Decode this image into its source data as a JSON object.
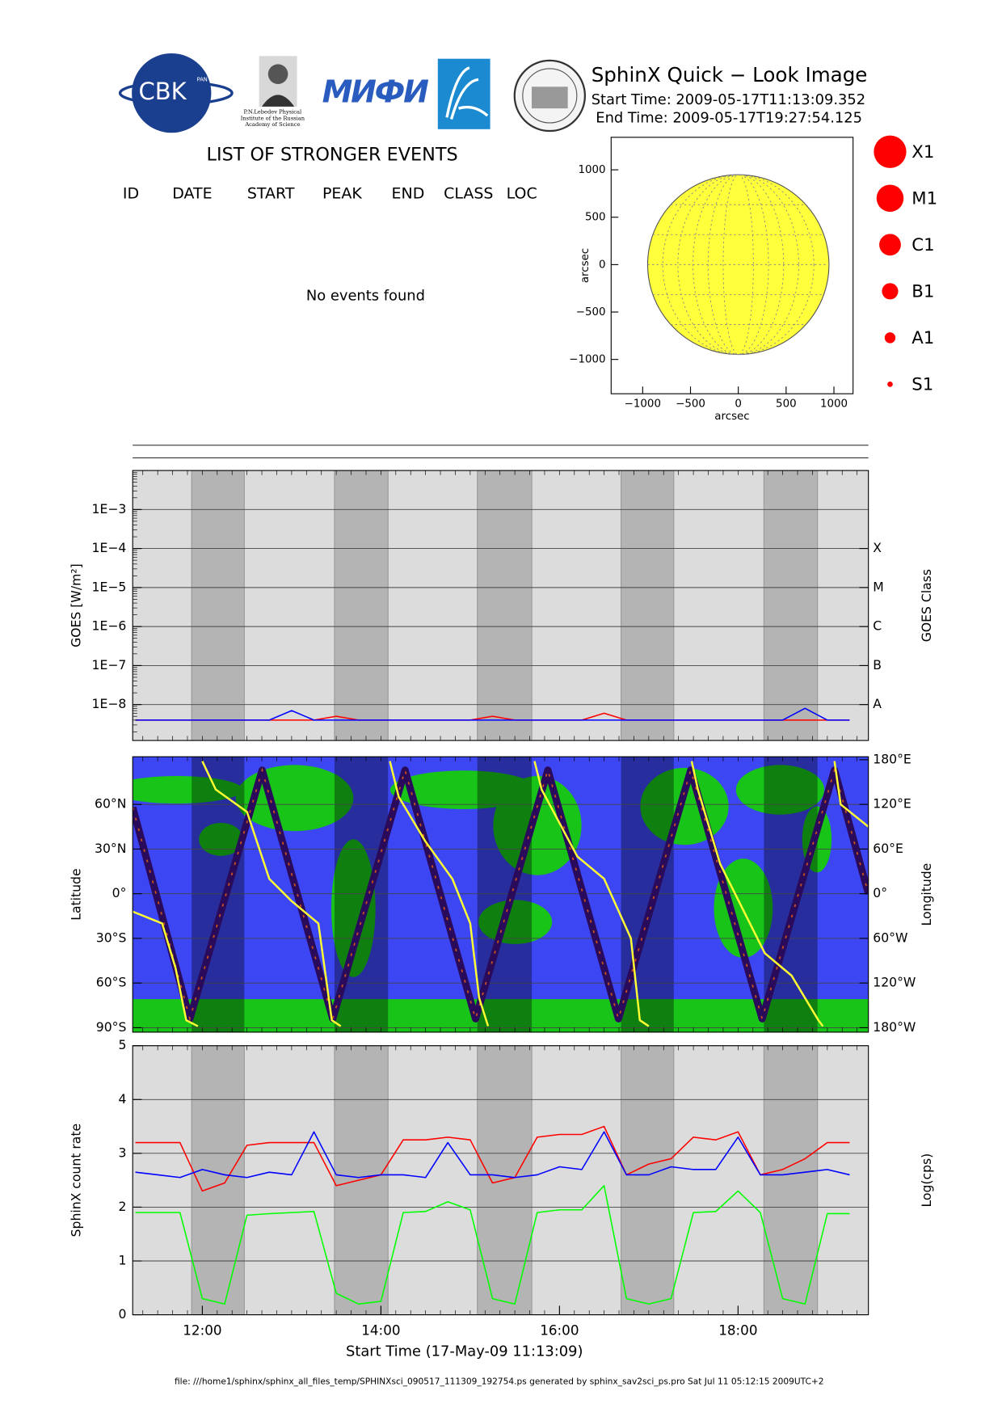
{
  "header": {
    "title": "SphinX Quick − Look Image",
    "start_time": "Start Time: 2009-05-17T11:13:09.352",
    "end_time": "End Time: 2009-05-17T19:27:54.125",
    "logo_cbk": "CBK",
    "logo_pan": "PAN",
    "logo_mifi": "МИФИ",
    "lebedev_caption": [
      "P.N.Lebedev Physical",
      "Institute of the Russian",
      "Academy of Science"
    ]
  },
  "events": {
    "title": "LIST OF STRONGER EVENTS",
    "columns": [
      "ID",
      "DATE",
      "START",
      "PEAK",
      "END",
      "CLASS",
      "LOC"
    ],
    "message": "No events found"
  },
  "flare_legend": {
    "color": "#ff0000",
    "labels": [
      "X1",
      "M1",
      "C1",
      "B1",
      "A1",
      "S1"
    ]
  },
  "shaded_intervals": [
    [
      11.88,
      12.47
    ],
    [
      13.48,
      14.08
    ],
    [
      15.08,
      15.69
    ],
    [
      16.69,
      17.28
    ],
    [
      18.29,
      18.89
    ]
  ],
  "footer": "file: ///home1/sphinx/sphinx_all_files_temp/SPHINXsci_090517_111309_192754.ps generated by sphinx_sav2sci_ps.pro Sat Jul 11 05:12:15 2009UTC+2",
  "chart_data": [
    {
      "type": "disk",
      "xlabel": "arcsec",
      "ylabel": "arcsec",
      "xlim": [
        -1330,
        1200
      ],
      "ylim": [
        -1362,
        1343
      ],
      "xticks": [
        {
          "value": -1000,
          "label": "−1000"
        },
        {
          "value": -500,
          "label": "−500"
        },
        0,
        500,
        1000
      ],
      "yticks": [
        {
          "value": -1000,
          "label": "−1000"
        },
        {
          "value": -500,
          "label": "−500"
        },
        0,
        500,
        1000
      ],
      "disk": {
        "x": 0,
        "y": 0,
        "r": 948,
        "color": "#ffff3c"
      }
    },
    {
      "type": "line",
      "ylabel": "GOES [W/m²]",
      "y2label": "GOES Class",
      "log_y": true,
      "background": "#dcdcdc",
      "shade_color": "#b4b4b4",
      "xlim": [
        11.22,
        19.46
      ],
      "ylim": [
        1.2e-09,
        0.01
      ],
      "yticks": [
        {
          "value": 1e-08,
          "label": "1E−8"
        },
        {
          "value": 1e-07,
          "label": "1E−7"
        },
        {
          "value": 1e-06,
          "label": "1E−6"
        },
        {
          "value": 1e-05,
          "label": "1E−5"
        },
        {
          "value": 0.0001,
          "label": "1E−4"
        },
        {
          "value": 0.001,
          "label": "1E−3"
        }
      ],
      "class_ticks": [
        {
          "value": 1e-08,
          "label": "A"
        },
        {
          "value": 1e-07,
          "label": "B"
        },
        {
          "value": 1e-06,
          "label": "C"
        },
        {
          "value": 1e-05,
          "label": "M"
        },
        {
          "value": 0.0001,
          "label": "X"
        }
      ],
      "grid": true,
      "x": [
        11.25,
        11.5,
        11.75,
        12,
        12.25,
        12.5,
        12.75,
        13,
        13.25,
        13.5,
        13.75,
        14,
        14.25,
        14.5,
        14.75,
        15,
        15.25,
        15.5,
        15.75,
        16,
        16.25,
        16.5,
        16.75,
        17,
        17.25,
        17.5,
        17.75,
        18,
        18.25,
        18.5,
        18.75,
        19,
        19.25
      ],
      "series": [
        {
          "color": "#ff0000",
          "values": [
            4e-09,
            4e-09,
            4e-09,
            4e-09,
            4e-09,
            4e-09,
            4e-09,
            4e-09,
            4e-09,
            5e-09,
            4e-09,
            4e-09,
            4e-09,
            4e-09,
            4e-09,
            4e-09,
            5e-09,
            4e-09,
            4e-09,
            4e-09,
            4e-09,
            6e-09,
            4e-09,
            4e-09,
            4e-09,
            4e-09,
            4e-09,
            4e-09,
            4e-09,
            4e-09,
            4e-09,
            4e-09,
            4e-09
          ]
        },
        {
          "color": "#0000ff",
          "values": [
            4e-09,
            4e-09,
            4e-09,
            4e-09,
            4e-09,
            4e-09,
            4e-09,
            7e-09,
            4e-09,
            4e-09,
            4e-09,
            4e-09,
            4e-09,
            4e-09,
            4e-09,
            4e-09,
            4e-09,
            4e-09,
            4e-09,
            4e-09,
            4e-09,
            4e-09,
            4e-09,
            4e-09,
            4e-09,
            4e-09,
            4e-09,
            4e-09,
            4e-09,
            4e-09,
            8e-09,
            4e-09,
            4e-09
          ]
        }
      ]
    },
    {
      "type": "line",
      "ylabel": "Latitude",
      "y2label": "Longitude",
      "background": "#3c46f2",
      "land_color": "#18c418",
      "shade_color": "#000000",
      "xlim": [
        11.22,
        19.46
      ],
      "ylim": [
        -93,
        92
      ],
      "yticks": [
        {
          "value": -90,
          "label": "90°S"
        },
        {
          "value": -60,
          "label": "60°S"
        },
        {
          "value": -30,
          "label": "30°S"
        },
        {
          "value": 0,
          "label": "0°"
        },
        {
          "value": 30,
          "label": "30°N"
        },
        {
          "value": 60,
          "label": "60°N"
        }
      ],
      "y2lim": [
        -186,
        184
      ],
      "y2ticks": [
        {
          "value": -180,
          "label": "180°W"
        },
        {
          "value": -120,
          "label": "120°W"
        },
        {
          "value": -60,
          "label": "60°W"
        },
        {
          "value": 0,
          "label": "0°"
        },
        {
          "value": 60,
          "label": "60°E"
        },
        {
          "value": 120,
          "label": "120°E"
        },
        {
          "value": 180,
          "label": "180°E"
        }
      ],
      "grid": true,
      "series": [
        {
          "color": "#2a0a5a",
          "x": [
            11.22,
            11.86,
            12.67,
            13.46,
            14.27,
            15.06,
            15.87,
            16.66,
            17.47,
            18.27,
            19.08,
            19.46
          ],
          "values": [
            58,
            -84,
            83,
            -84,
            83,
            -84,
            83,
            -84,
            83,
            -84,
            83,
            0
          ]
        },
        {
          "color": "#ffff33",
          "axis": "y2",
          "x": [
            11.22,
            11.55,
            11.7,
            11.82,
            11.95,
            null,
            12.0,
            12.15,
            12.5,
            12.75,
            13.0,
            13.3,
            13.45,
            13.55,
            null,
            14.1,
            14.2,
            14.5,
            14.8,
            15.0,
            15.1,
            15.2,
            null,
            15.72,
            15.8,
            16.2,
            16.5,
            16.8,
            16.9,
            17.0,
            null,
            17.48,
            17.55,
            17.8,
            18.3,
            18.6,
            18.9,
            18.95,
            null,
            19.08,
            19.15,
            19.46
          ],
          "values": [
            -24,
            -40,
            -100,
            -170,
            -178,
            null,
            178,
            140,
            110,
            20,
            -10,
            -40,
            -170,
            -178,
            null,
            178,
            130,
            70,
            20,
            -40,
            -140,
            -178,
            null,
            178,
            140,
            50,
            20,
            -60,
            -170,
            -178,
            null,
            178,
            140,
            40,
            -80,
            -110,
            -170,
            -178,
            null,
            178,
            120,
            90
          ]
        }
      ]
    },
    {
      "type": "line",
      "ylabel": "SphinX count rate",
      "y2label": "Log(cps)",
      "xlabel": "Start Time (17-May-09 11:13:09)",
      "background": "#dcdcdc",
      "shade_color": "#b4b4b4",
      "xlim": [
        11.22,
        19.46
      ],
      "xticks": [
        {
          "value": 12,
          "label": "12:00"
        },
        {
          "value": 14,
          "label": "14:00"
        },
        {
          "value": 16,
          "label": "16:00"
        },
        {
          "value": 18,
          "label": "18:00"
        }
      ],
      "ylim": [
        0,
        5
      ],
      "yticks": [
        0,
        1,
        2,
        3,
        4,
        5
      ],
      "grid": true,
      "x": [
        11.25,
        11.5,
        11.75,
        12,
        12.25,
        12.5,
        12.75,
        13,
        13.25,
        13.5,
        13.75,
        14,
        14.25,
        14.5,
        14.75,
        15,
        15.25,
        15.5,
        15.75,
        16,
        16.25,
        16.5,
        16.75,
        17,
        17.25,
        17.5,
        17.75,
        18,
        18.25,
        18.5,
        18.75,
        19,
        19.25
      ],
      "series": [
        {
          "color": "#ff0000",
          "values": [
            3.2,
            3.2,
            3.2,
            2.3,
            2.45,
            3.15,
            3.2,
            3.2,
            3.2,
            2.4,
            2.5,
            2.6,
            3.25,
            3.25,
            3.3,
            3.25,
            2.45,
            2.55,
            3.3,
            3.35,
            3.35,
            3.5,
            2.6,
            2.8,
            2.9,
            3.3,
            3.25,
            3.4,
            2.6,
            2.7,
            2.9,
            3.2,
            3.2
          ]
        },
        {
          "color": "#0000ff",
          "values": [
            2.65,
            2.6,
            2.55,
            2.7,
            2.6,
            2.55,
            2.65,
            2.6,
            3.4,
            2.6,
            2.55,
            2.6,
            2.6,
            2.55,
            3.2,
            2.6,
            2.6,
            2.55,
            2.6,
            2.75,
            2.7,
            3.4,
            2.6,
            2.6,
            2.75,
            2.7,
            2.7,
            3.3,
            2.6,
            2.6,
            2.65,
            2.7,
            2.6
          ]
        },
        {
          "color": "#00ff00",
          "values": [
            1.9,
            1.9,
            1.9,
            0.3,
            0.2,
            1.85,
            1.88,
            1.9,
            1.92,
            0.4,
            0.2,
            0.25,
            1.9,
            1.92,
            2.1,
            1.95,
            0.3,
            0.2,
            1.9,
            1.95,
            1.95,
            2.4,
            0.3,
            0.2,
            0.3,
            1.9,
            1.92,
            2.3,
            1.9,
            0.3,
            0.2,
            1.88,
            1.88
          ]
        }
      ]
    }
  ]
}
